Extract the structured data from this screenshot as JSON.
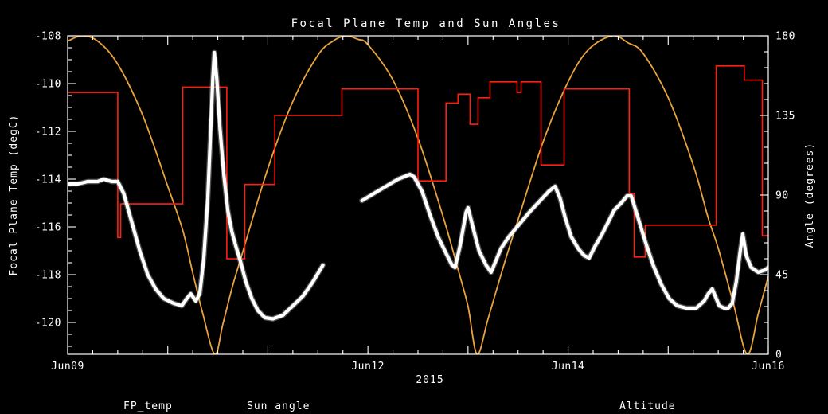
{
  "legend": [
    {
      "label": "FP_temp",
      "color": "#ffffff"
    },
    {
      "label": "Sun angle",
      "color": "#ff1f10"
    },
    {
      "label": "Altitude",
      "color": "#e8a33d"
    }
  ],
  "chart_data": {
    "type": "line",
    "title": "Focal Plane Temp and Sun Angles",
    "xlabel": "2015",
    "background": "#000000",
    "axis_color": "#ffffff",
    "grid": false,
    "legend_position": "bottom",
    "x_axis": {
      "range": [
        0,
        7
      ],
      "major_step": 1,
      "minor_step": 0.25,
      "labels": [
        {
          "pos": 0,
          "text": "Jun09"
        },
        {
          "pos": 3,
          "text": "Jun12"
        },
        {
          "pos": 5,
          "text": "Jun14"
        },
        {
          "pos": 7,
          "text": "Jun16"
        }
      ]
    },
    "left_axis": {
      "label": "Focal Plane Temp (degC)",
      "range": [
        -121.333,
        -108
      ],
      "ticks": [
        -120,
        -118,
        -116,
        -114,
        -112,
        -110,
        -108
      ],
      "minor_step": 0.5
    },
    "right_axis": {
      "label": "Angle (degrees)",
      "range": [
        0,
        180
      ],
      "ticks": [
        0,
        45,
        90,
        135,
        180
      ],
      "minor_step": 9
    },
    "series": [
      {
        "name": "FP_temp",
        "axis": "left",
        "color": "#ffffff",
        "style": "scatter-line",
        "width": 4.2,
        "segments": [
          [
            [
              0.0,
              -114.2
            ],
            [
              0.1,
              -114.2
            ],
            [
              0.2,
              -114.1
            ],
            [
              0.3,
              -114.1
            ],
            [
              0.36,
              -114.0
            ],
            [
              0.44,
              -114.1
            ],
            [
              0.5,
              -114.1
            ],
            [
              0.56,
              -114.6
            ],
            [
              0.64,
              -115.8
            ],
            [
              0.72,
              -117.0
            ],
            [
              0.8,
              -118.0
            ],
            [
              0.88,
              -118.6
            ],
            [
              0.96,
              -119.0
            ],
            [
              1.06,
              -119.2
            ],
            [
              1.14,
              -119.3
            ],
            [
              1.19,
              -119.0
            ],
            [
              1.23,
              -118.8
            ],
            [
              1.28,
              -119.1
            ],
            [
              1.32,
              -118.8
            ],
            [
              1.36,
              -117.3
            ],
            [
              1.4,
              -114.8
            ],
            [
              1.43,
              -111.8
            ],
            [
              1.45,
              -109.8
            ],
            [
              1.465,
              -108.7
            ],
            [
              1.49,
              -109.8
            ],
            [
              1.52,
              -111.8
            ],
            [
              1.56,
              -113.8
            ],
            [
              1.6,
              -115.3
            ],
            [
              1.64,
              -116.2
            ],
            [
              1.68,
              -116.8
            ],
            [
              1.73,
              -117.5
            ],
            [
              1.78,
              -118.3
            ],
            [
              1.84,
              -119.0
            ],
            [
              1.9,
              -119.5
            ],
            [
              1.97,
              -119.8
            ],
            [
              2.05,
              -119.85
            ],
            [
              2.15,
              -119.7
            ],
            [
              2.25,
              -119.3
            ],
            [
              2.35,
              -118.9
            ],
            [
              2.45,
              -118.3
            ],
            [
              2.55,
              -117.6
            ]
          ],
          [
            [
              2.94,
              -114.9
            ],
            [
              3.06,
              -114.6
            ],
            [
              3.18,
              -114.3
            ],
            [
              3.3,
              -114.0
            ],
            [
              3.42,
              -113.8
            ],
            [
              3.46,
              -113.9
            ],
            [
              3.54,
              -114.5
            ],
            [
              3.62,
              -115.5
            ],
            [
              3.7,
              -116.4
            ],
            [
              3.78,
              -117.1
            ],
            [
              3.84,
              -117.6
            ],
            [
              3.87,
              -117.7
            ],
            [
              3.92,
              -116.8
            ],
            [
              3.98,
              -115.4
            ],
            [
              4.0,
              -115.2
            ],
            [
              4.06,
              -116.2
            ],
            [
              4.11,
              -117.0
            ],
            [
              4.18,
              -117.6
            ],
            [
              4.23,
              -117.9
            ],
            [
              4.27,
              -117.5
            ],
            [
              4.33,
              -116.9
            ],
            [
              4.41,
              -116.4
            ],
            [
              4.51,
              -115.9
            ],
            [
              4.61,
              -115.4
            ],
            [
              4.72,
              -114.9
            ],
            [
              4.81,
              -114.5
            ],
            [
              4.87,
              -114.3
            ],
            [
              4.92,
              -114.8
            ],
            [
              4.97,
              -115.6
            ],
            [
              5.03,
              -116.4
            ],
            [
              5.1,
              -116.9
            ],
            [
              5.16,
              -117.2
            ],
            [
              5.21,
              -117.3
            ],
            [
              5.27,
              -116.8
            ],
            [
              5.34,
              -116.3
            ],
            [
              5.4,
              -115.8
            ],
            [
              5.46,
              -115.3
            ],
            [
              5.53,
              -115.0
            ],
            [
              5.59,
              -114.7
            ],
            [
              5.63,
              -114.7
            ],
            [
              5.69,
              -115.5
            ],
            [
              5.77,
              -116.6
            ],
            [
              5.85,
              -117.6
            ],
            [
              5.93,
              -118.4
            ],
            [
              6.01,
              -119.0
            ],
            [
              6.09,
              -119.3
            ],
            [
              6.18,
              -119.4
            ],
            [
              6.28,
              -119.4
            ],
            [
              6.36,
              -119.1
            ],
            [
              6.4,
              -118.8
            ],
            [
              6.44,
              -118.6
            ],
            [
              6.47,
              -118.9
            ],
            [
              6.51,
              -119.3
            ],
            [
              6.56,
              -119.4
            ],
            [
              6.6,
              -119.4
            ],
            [
              6.64,
              -119.2
            ],
            [
              6.68,
              -118.3
            ],
            [
              6.72,
              -117.0
            ],
            [
              6.745,
              -116.3
            ],
            [
              6.78,
              -117.2
            ],
            [
              6.83,
              -117.7
            ],
            [
              6.9,
              -117.9
            ],
            [
              6.97,
              -117.8
            ],
            [
              7.0,
              -117.7
            ]
          ]
        ]
      },
      {
        "name": "Sun angle",
        "axis": "right",
        "color": "#ff1f10",
        "style": "step",
        "width": 1.6,
        "points": [
          [
            0.0,
            148
          ],
          [
            0.5,
            66
          ],
          [
            0.53,
            85
          ],
          [
            1.15,
            151
          ],
          [
            1.59,
            54
          ],
          [
            1.77,
            96
          ],
          [
            2.07,
            135
          ],
          [
            2.74,
            150
          ],
          [
            3.5,
            98
          ],
          [
            3.78,
            142
          ],
          [
            3.9,
            147
          ],
          [
            4.02,
            130
          ],
          [
            4.1,
            145
          ],
          [
            4.22,
            154
          ],
          [
            4.49,
            148
          ],
          [
            4.53,
            154
          ],
          [
            4.73,
            107
          ],
          [
            4.96,
            150
          ],
          [
            5.61,
            91
          ],
          [
            5.66,
            55
          ],
          [
            5.77,
            73
          ],
          [
            6.48,
            163
          ],
          [
            6.76,
            155
          ],
          [
            6.94,
            67
          ]
        ]
      },
      {
        "name": "Altitude",
        "axis": "right",
        "color": "#e8a33d",
        "style": "smooth",
        "width": 1.8,
        "points": [
          [
            0.0,
            177
          ],
          [
            0.14,
            180
          ],
          [
            0.3,
            177
          ],
          [
            0.5,
            164
          ],
          [
            0.75,
            135
          ],
          [
            1.0,
            95
          ],
          [
            1.15,
            70
          ],
          [
            1.25,
            46
          ],
          [
            1.35,
            23
          ],
          [
            1.47,
            0
          ],
          [
            1.55,
            17
          ],
          [
            1.65,
            39
          ],
          [
            1.75,
            58
          ],
          [
            2.0,
            105
          ],
          [
            2.25,
            143
          ],
          [
            2.5,
            169
          ],
          [
            2.65,
            177
          ],
          [
            2.78,
            180
          ],
          [
            2.9,
            178
          ],
          [
            3.0,
            175
          ],
          [
            3.25,
            155
          ],
          [
            3.5,
            122
          ],
          [
            3.75,
            78
          ],
          [
            3.9,
            48
          ],
          [
            4.0,
            27
          ],
          [
            4.09,
            0
          ],
          [
            4.2,
            20
          ],
          [
            4.35,
            49
          ],
          [
            4.5,
            76
          ],
          [
            4.75,
            120
          ],
          [
            5.0,
            154
          ],
          [
            5.2,
            172
          ],
          [
            5.44,
            180
          ],
          [
            5.6,
            176
          ],
          [
            5.75,
            170
          ],
          [
            6.0,
            145
          ],
          [
            6.25,
            107
          ],
          [
            6.4,
            77
          ],
          [
            6.5,
            60
          ],
          [
            6.65,
            29
          ],
          [
            6.79,
            0
          ],
          [
            6.9,
            23
          ],
          [
            7.0,
            44
          ]
        ]
      }
    ]
  }
}
